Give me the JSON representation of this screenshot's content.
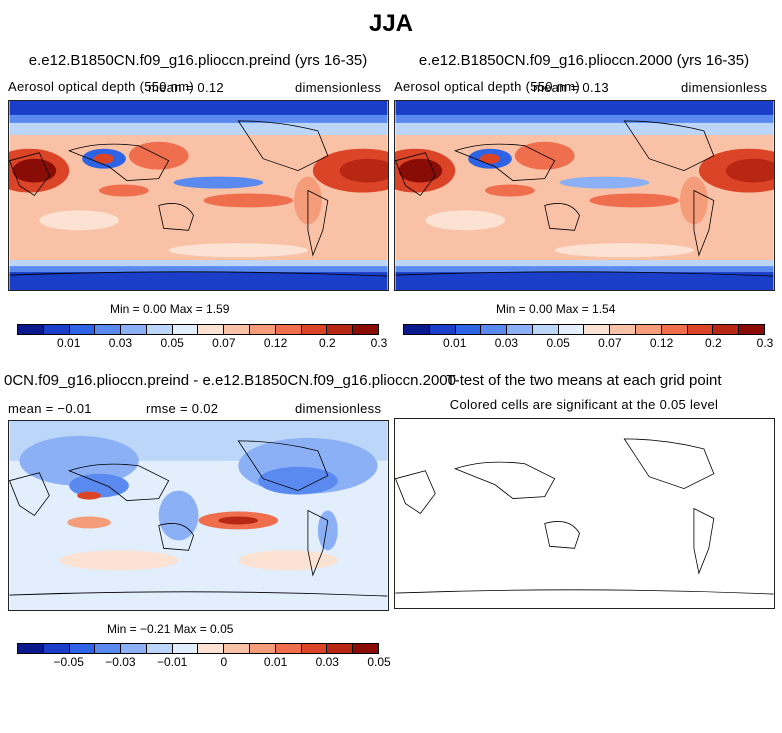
{
  "title": "JJA",
  "panels": {
    "p1": {
      "title": "e.e12.B1850CN.f09_g16.plioccn.preind (yrs 16-35)",
      "left_label": "Aerosol optical depth (550 nm)",
      "mean_label": "mean = 0.12",
      "units": "dimensionless",
      "minmax": "Min =    0.00 Max =    1.59"
    },
    "p2": {
      "title": "e.e12.B1850CN.f09_g16.plioccn.2000 (yrs 16-35)",
      "left_label": "Aerosol optical depth (550 nm)",
      "mean_label": "mean = 0.13",
      "units": "dimensionless",
      "minmax": "Min =    0.00 Max =    1.54"
    },
    "p3": {
      "title": "0CN.f09_g16.plioccn.preind - e.e12.B1850CN.f09_g16.plioccn.2000",
      "left_label": "mean =  −0.01",
      "rmse_label": "rmse =   0.02",
      "units": "dimensionless",
      "minmax": "Min =   −0.21 Max =    0.05"
    },
    "p4": {
      "title": "T-test of the two means at each grid point",
      "subtitle": "Colored cells are significant at the 0.05 level"
    }
  },
  "colorbars": {
    "aod": {
      "colors": [
        "#0a1a8c",
        "#1a3ec8",
        "#2e63e6",
        "#5a8af0",
        "#8cb0f5",
        "#bcd6fa",
        "#e2eefc",
        "#fbe2d2",
        "#f9c2a6",
        "#f59c7a",
        "#ee6e4e",
        "#dc4428",
        "#b82614",
        "#8a0c06"
      ],
      "labels": [
        "0.01",
        "0.03",
        "0.05",
        "0.07",
        "0.12",
        "0.2",
        "0.3"
      ]
    },
    "diff": {
      "colors": [
        "#0a1a8c",
        "#1a3ec8",
        "#2e63e6",
        "#5a8af0",
        "#8cb0f5",
        "#bcd6fa",
        "#e2eefc",
        "#fbe2d2",
        "#f9c2a6",
        "#f59c7a",
        "#ee6e4e",
        "#dc4428",
        "#b82614",
        "#8a0c06"
      ],
      "labels": [
        "−0.05",
        "−0.03",
        "−0.01",
        "0",
        "0.01",
        "0.03",
        "0.05"
      ]
    }
  }
}
